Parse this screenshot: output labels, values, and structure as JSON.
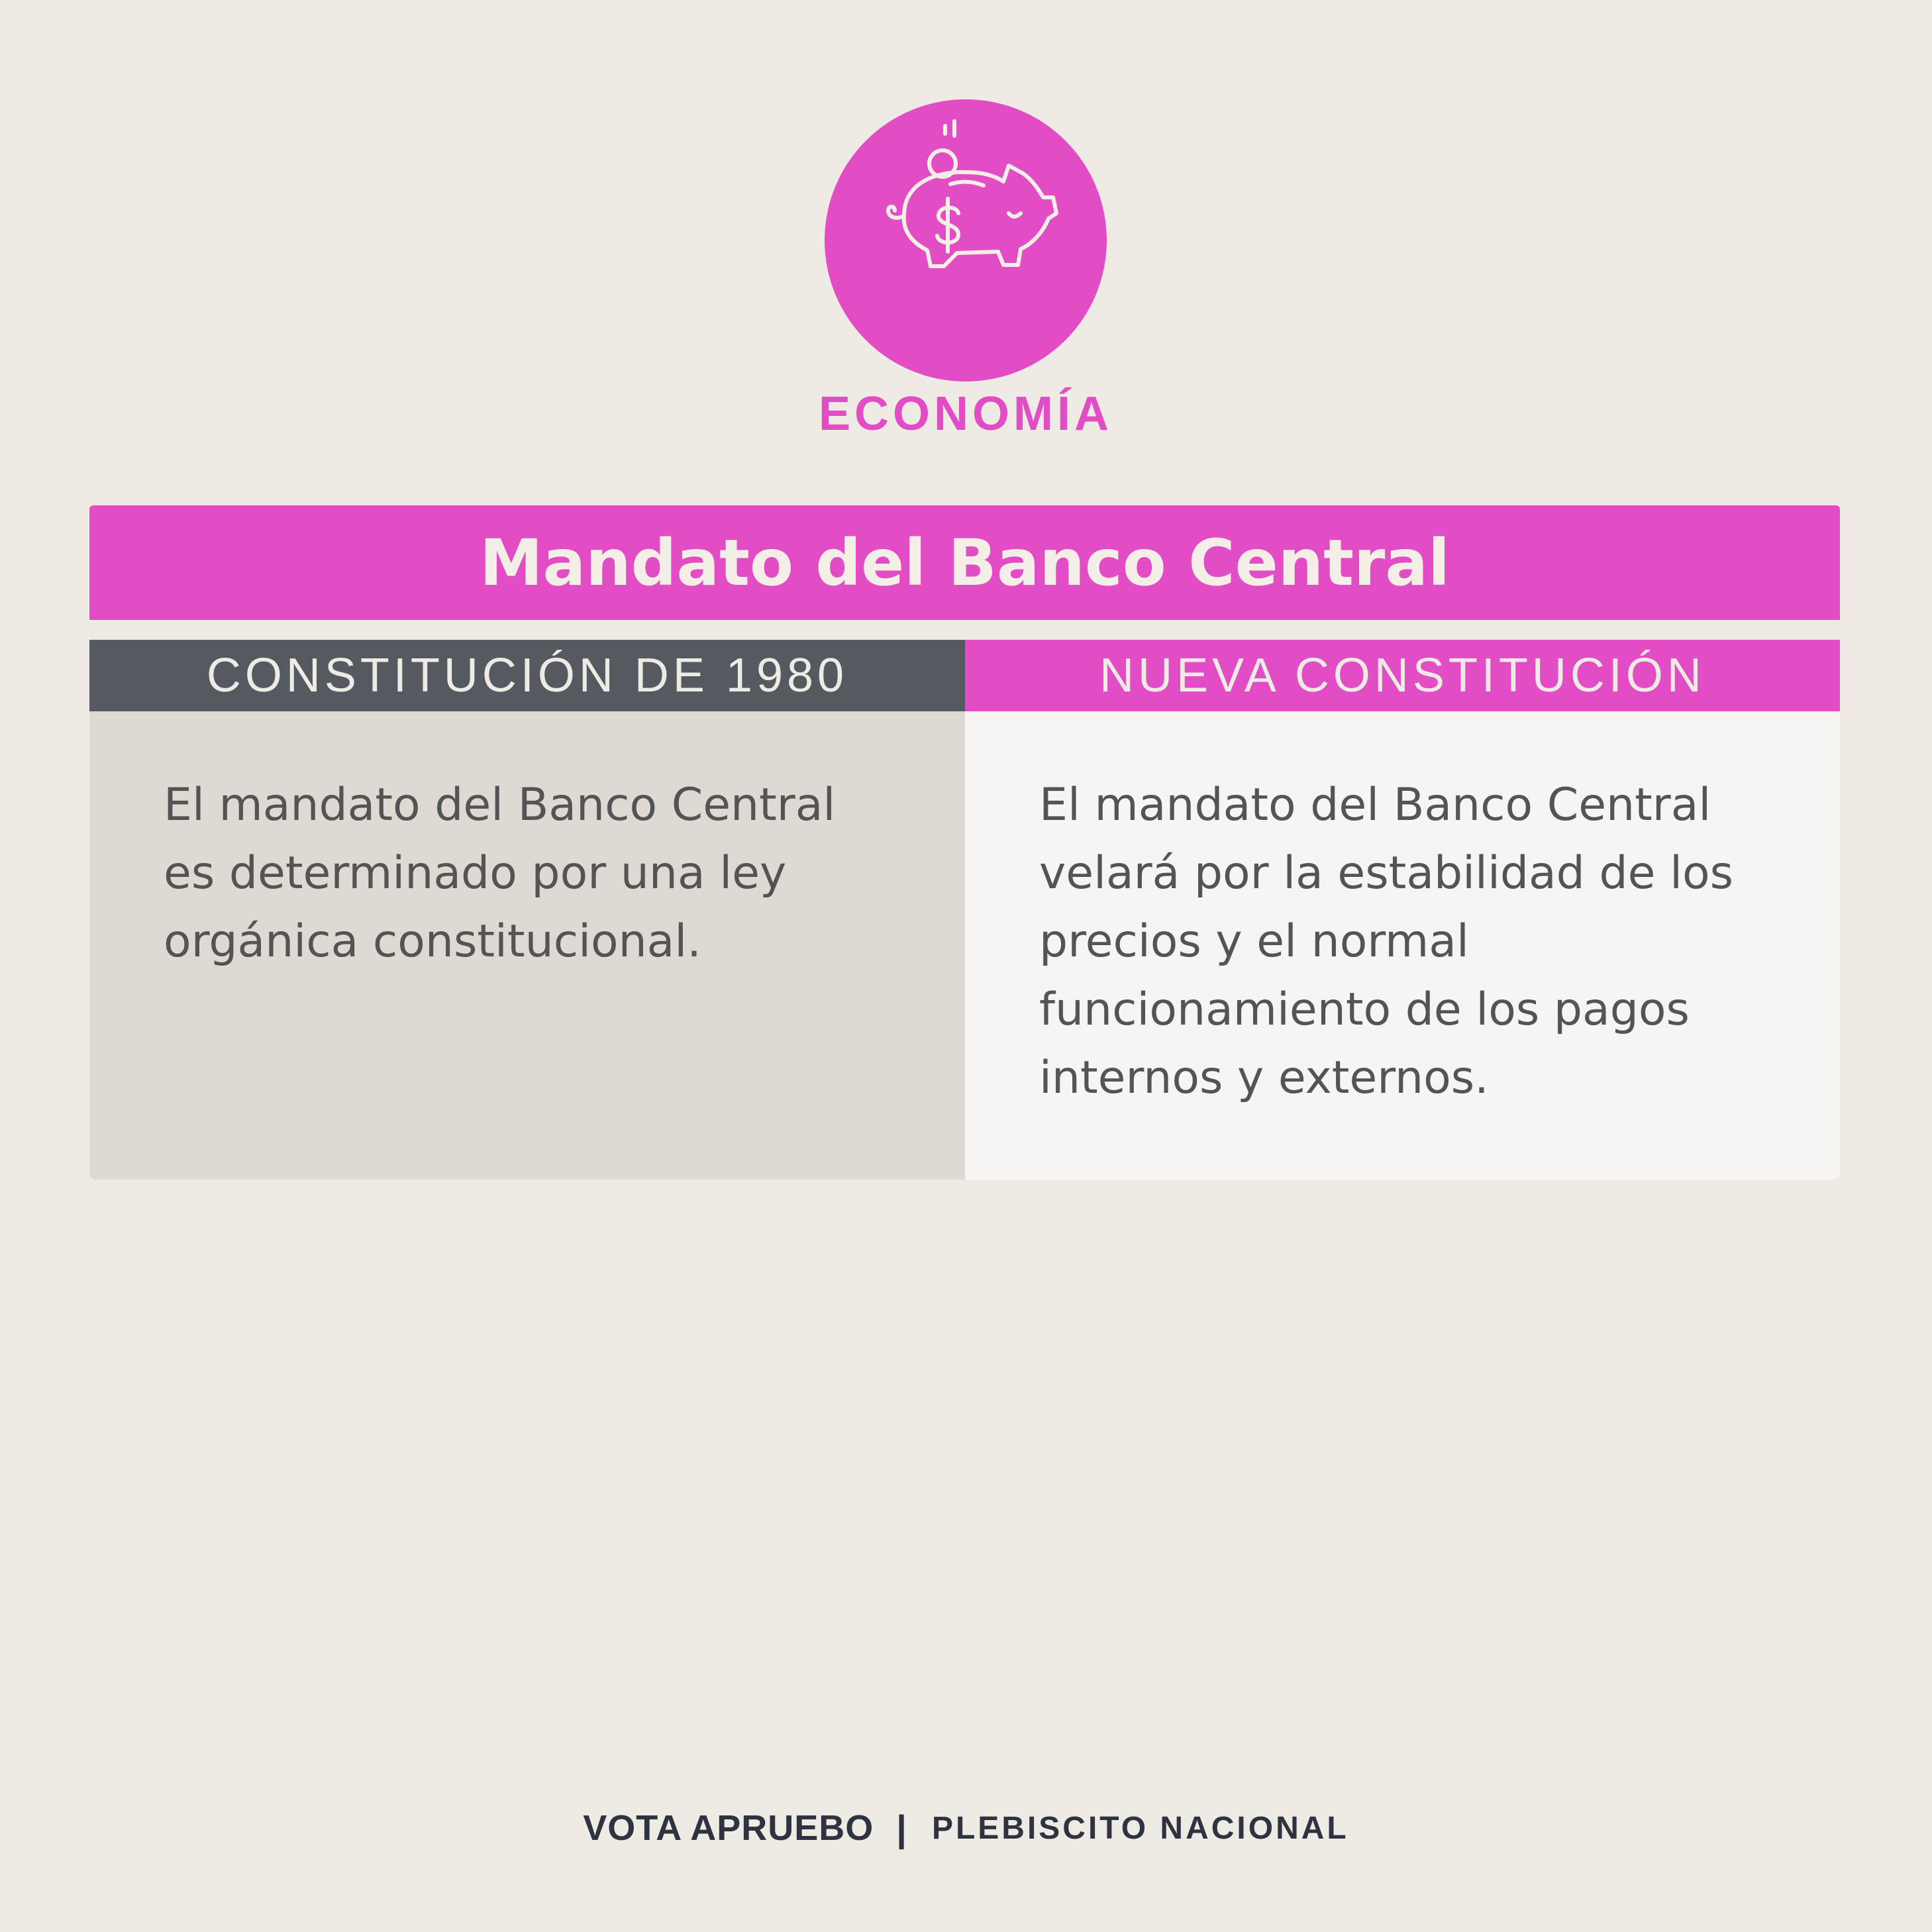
{
  "header": {
    "icon": "piggy-bank-icon",
    "category": "ECONOMÍA"
  },
  "title": "Mandato del Banco Central",
  "columns": [
    {
      "heading": "CONSTITUCIÓN DE 1980",
      "text": "El mandato del Banco Central es determinado por una ley orgánica constitucional."
    },
    {
      "heading": "NUEVA CONSTITUCIÓN",
      "text": "El mandato del Banco Central velará por la estabilidad de los precios y el normal funcionamiento de los pagos internos y externos."
    }
  ],
  "footer": {
    "brand": "VOTA APRUEBO",
    "separator": "|",
    "campaign": "PLEBISCITO NACIONAL"
  },
  "colors": {
    "accent": "#e24cc4",
    "background": "#eeebe4",
    "dark_header": "#555960",
    "left_panel": "#dedad3",
    "right_panel": "#f6f5f3",
    "footer_text": "#2f3240"
  }
}
